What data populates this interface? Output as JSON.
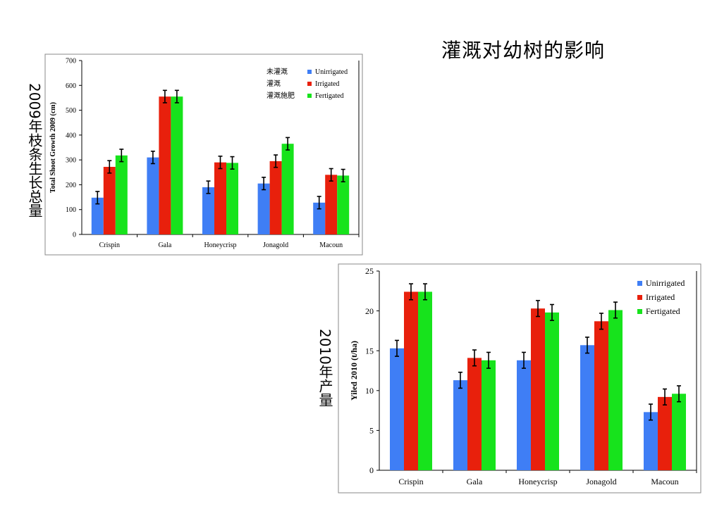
{
  "slide": {
    "title": "灌溉对幼树的影响",
    "side_label_1": "2009年枝条生长总量",
    "side_label_2": "2010年产量"
  },
  "colors": {
    "unirrigated": "#3f7ef5",
    "irrigated": "#e8200c",
    "fertigated": "#17e31c"
  },
  "chart_data": [
    {
      "type": "bar",
      "title": "",
      "xlabel": "",
      "ylabel": "Total Shoot Growth 2009 (cm)",
      "categories": [
        "Crispin",
        "Gala",
        "Honeycrisp",
        "Jonagold",
        "Macoun"
      ],
      "ylim": [
        0,
        700
      ],
      "yticks": [
        0,
        100,
        200,
        300,
        400,
        500,
        600,
        700
      ],
      "legend_position": "top-right",
      "legend_cn": [
        "未灌溉",
        "灌溉",
        "灌溉施肥"
      ],
      "series": [
        {
          "name": "Unirrigated",
          "values": [
            148,
            310,
            190,
            205,
            128
          ],
          "errors": [
            25,
            25,
            25,
            25,
            25
          ]
        },
        {
          "name": "Irrigated",
          "values": [
            272,
            555,
            290,
            295,
            240
          ],
          "errors": [
            25,
            25,
            25,
            25,
            25
          ]
        },
        {
          "name": "Fertigated",
          "values": [
            318,
            555,
            288,
            365,
            237
          ],
          "errors": [
            25,
            25,
            25,
            25,
            25
          ]
        }
      ]
    },
    {
      "type": "bar",
      "title": "",
      "xlabel": "",
      "ylabel": "Yiled 2010 (t/ha)",
      "categories": [
        "Crispin",
        "Gala",
        "Honeycrisp",
        "Jonagold",
        "Macoun"
      ],
      "ylim": [
        0,
        25
      ],
      "yticks": [
        0,
        5,
        10,
        15,
        20,
        25
      ],
      "legend_position": "top-right",
      "series": [
        {
          "name": "Unirrigated",
          "values": [
            15.3,
            11.3,
            13.8,
            15.7,
            7.3
          ],
          "errors": [
            1.0,
            1.0,
            1.0,
            1.0,
            1.0
          ]
        },
        {
          "name": "Irrigated",
          "values": [
            22.4,
            14.1,
            20.3,
            18.7,
            9.2
          ],
          "errors": [
            1.0,
            1.0,
            1.0,
            1.0,
            1.0
          ]
        },
        {
          "name": "Fertigated",
          "values": [
            22.4,
            13.8,
            19.8,
            20.1,
            9.6
          ],
          "errors": [
            1.0,
            1.0,
            1.0,
            1.0,
            1.0
          ]
        }
      ]
    }
  ]
}
